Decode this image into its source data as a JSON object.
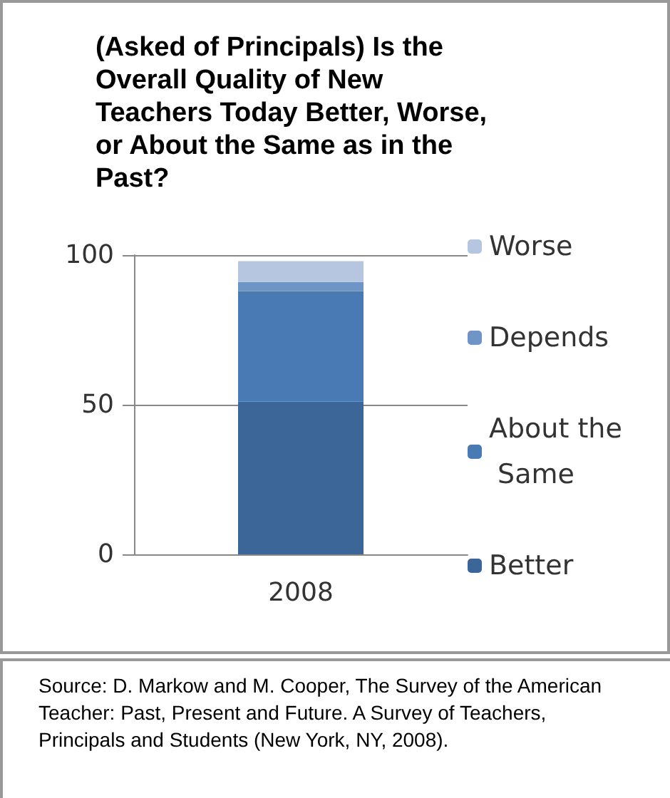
{
  "chart_data": {
    "type": "bar",
    "stacked": true,
    "title": "(Asked of Principals) Is the Overall Quality of New Teachers Today Better, Worse, or About the Same as in the Past?",
    "categories": [
      "2008"
    ],
    "series": [
      {
        "name": "Better",
        "color": "#3d6698",
        "values": [
          51
        ]
      },
      {
        "name": "About the Same",
        "color": "#4a7ab4",
        "values": [
          37
        ]
      },
      {
        "name": "Depends",
        "color": "#6f94c6",
        "values": [
          3
        ]
      },
      {
        "name": "Worse",
        "color": "#b6c6e0",
        "values": [
          7
        ]
      }
    ],
    "ylim": [
      0,
      100
    ],
    "yticks": [
      0,
      50,
      100
    ],
    "grid": "y",
    "legend": "right",
    "annotations": [
      "Source: D. Markow and M. Cooper, The Survey of the American Teacher: Past, Present and Future. A Survey of Teachers, Principals and Students (New York, NY, 2008)."
    ]
  }
}
